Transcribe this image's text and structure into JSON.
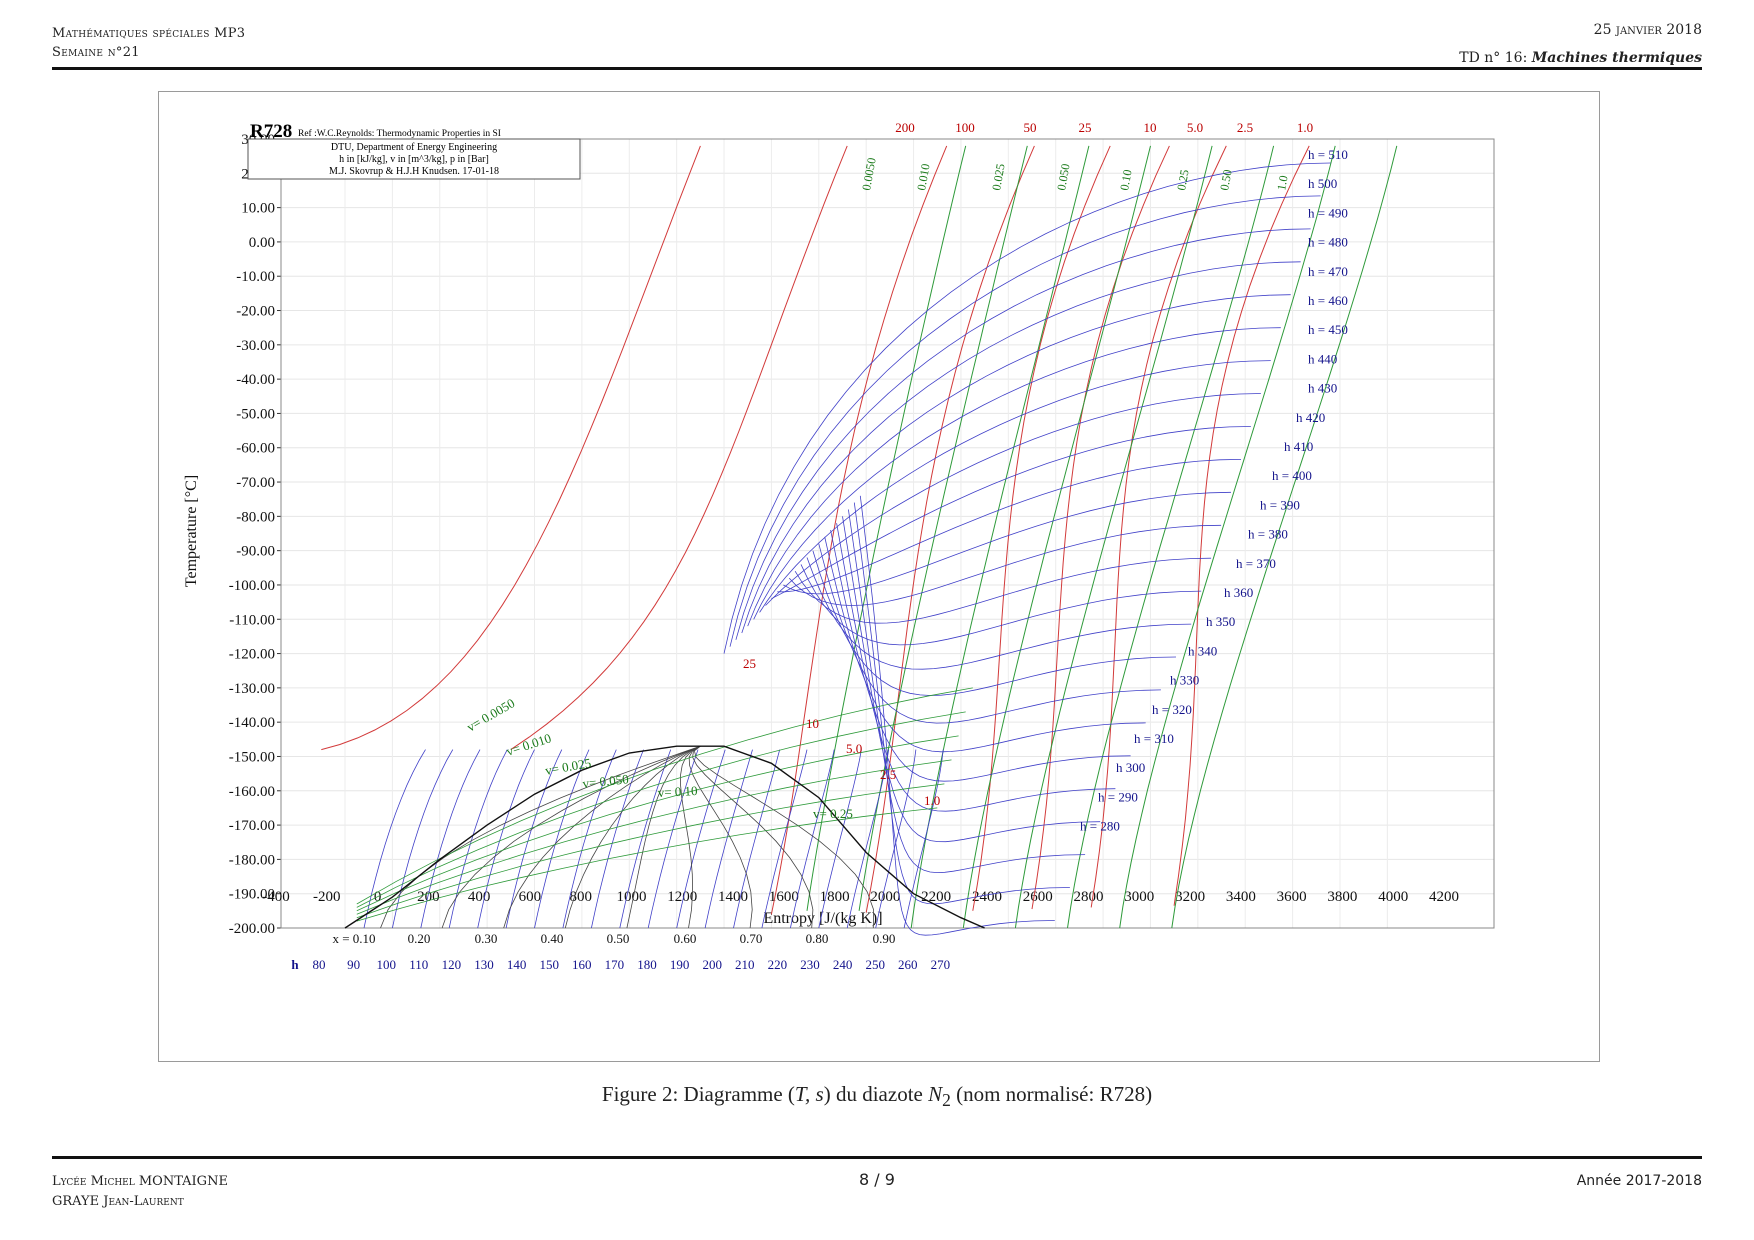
{
  "header": {
    "left_line1": "Mathématiques spéciales MP3",
    "left_line2": "Semaine n°21",
    "date": "25 janvier 2018",
    "td_prefix": "TD n° 16: ",
    "td_title": "Machines thermiques"
  },
  "caption": {
    "prefix": "Figure 2: Diagramme (",
    "math": "T, s",
    "middle": ") du diazote ",
    "species": "N",
    "sub": "2",
    "suffix": " (nom normalisé: R728)"
  },
  "footer": {
    "left_line1": "Lycée Michel MONTAIGNE",
    "left_line2": "GRAYE Jean-Laurent",
    "page": "8 / 9",
    "year": "Année 2017-2018"
  },
  "chart_data": {
    "type": "line",
    "title": "R728",
    "reference": "Ref :W.C.Reynolds: Thermodynamic Properties in SI",
    "info_lines": [
      "DTU, Department of Energy Engineering",
      "h in [kJ/kg], v in [m^3/kg], p in [Bar]",
      "M.J. Skovrup & H.J.H Knudsen. 17-01-18"
    ],
    "xlabel": "Entropy [J/(kg K)]",
    "ylabel": "Temperature [°C]",
    "xlim": [
      -400,
      4200
    ],
    "ylim": [
      -200,
      30
    ],
    "x_ticks": [
      -400,
      -200,
      0,
      200,
      400,
      600,
      800,
      1000,
      1200,
      1400,
      1600,
      1800,
      2000,
      2200,
      2400,
      2600,
      2800,
      3000,
      3200,
      3400,
      3600,
      3800,
      4000,
      4200
    ],
    "y_ticks": [
      "30.00",
      "20.00",
      "10.00",
      "0.00",
      "-10.00",
      "-20.00",
      "-30.00",
      "-40.00",
      "-50.00",
      "-60.00",
      "-70.00",
      "-80.00",
      "-90.00",
      "-100.00",
      "-110.00",
      "-120.00",
      "-130.00",
      "-140.00",
      "-150.00",
      "-160.00",
      "-170.00",
      "-180.00",
      "-190.00",
      "-200.00"
    ],
    "grid": true,
    "quality_labels": [
      "x = 0.10",
      "0.20",
      "0.30",
      "0.40",
      "0.50",
      "0.60",
      "0.70",
      "0.80",
      "0.90"
    ],
    "enthalpy_bottom_labels": [
      "h",
      "80",
      "90",
      "100",
      "110",
      "120",
      "130",
      "140",
      "150",
      "160",
      "170",
      "180",
      "190",
      "200",
      "210",
      "220",
      "230",
      "240",
      "250",
      "260",
      "270"
    ],
    "enthalpy_right_labels": [
      "h = 510",
      "h  500",
      "h = 490",
      "h = 480",
      "h = 470",
      "h = 460",
      "h = 450",
      "h  440",
      "h  430",
      "h  420",
      "h  410",
      "h = 400",
      "h = 390",
      "h = 380",
      "h = 370",
      "h  360",
      "h  350",
      "h  340",
      "h  330",
      "h = 320",
      "h = 310",
      "h  300",
      "h = 290",
      "h = 280"
    ],
    "pressure_top_labels": [
      "200",
      "100",
      "50",
      "25",
      "10",
      "5.0",
      "2.5",
      "1.0"
    ],
    "pressure_dome_labels": [
      "25",
      "10",
      "5.0",
      "2.5",
      "1.0"
    ],
    "volume_top_labels": [
      "0.0050",
      "0.010",
      "0.025",
      "0.050",
      "0.10",
      "0.25",
      "0.50",
      "1.0"
    ],
    "volume_dome_labels": [
      "v= 0.0050",
      "v= 0.010",
      "v= 0.025",
      "v= 0.050",
      "v= 0.10",
      "v= 0.25"
    ],
    "saturation_dome": {
      "x": [
        -200,
        0,
        200,
        400,
        600,
        800,
        1000,
        1200,
        1300,
        1400,
        1600,
        1800,
        2000,
        2200,
        2400,
        2500
      ],
      "y": [
        -200,
        -191,
        -180,
        -170,
        -161,
        -154,
        -149,
        -147,
        -147,
        -147,
        -152,
        -162,
        -178,
        -190,
        -197,
        -200
      ]
    },
    "series": [
      {
        "name": "isobar",
        "color": "#d23a3a"
      },
      {
        "name": "isochore",
        "color": "#2e9a3a"
      },
      {
        "name": "isenthalp",
        "color": "#4040c8"
      },
      {
        "name": "quality",
        "color": "#444444"
      }
    ]
  }
}
